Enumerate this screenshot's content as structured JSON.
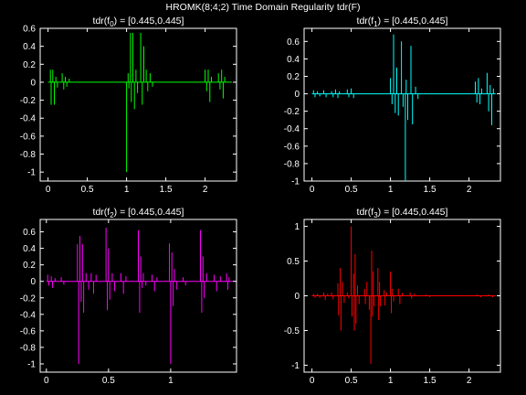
{
  "figure": {
    "title": "HROMK(8;4;2) Time Domain Regularity tdr(F)"
  },
  "chart_data": [
    {
      "type": "line",
      "title": "tdr(f0) = [0.445,0.445]",
      "title_parts": {
        "pre": "tdr(f",
        "sub": "0",
        "post": ") = [0.445,0.445]"
      },
      "color": "#00ff00",
      "xlim": [
        -0.1,
        2.4
      ],
      "ylim": [
        -1.1,
        0.6
      ],
      "xticks": [
        0,
        0.5,
        1,
        1.5,
        2
      ],
      "xtick_labels": [
        "0",
        "0.5",
        "1",
        "1.5",
        "2"
      ],
      "yticks": [
        -1,
        -0.8,
        -0.6,
        -0.4,
        -0.2,
        0,
        0.2,
        0.4,
        0.6
      ],
      "ytick_labels": [
        "-1",
        "-0.8",
        "-0.6",
        "-0.4",
        "-0.2",
        "0",
        "0.2",
        "0.4",
        "0.6"
      ],
      "x_start": 0.0,
      "x_end": 2.34,
      "spikes": [
        [
          0.03,
          0.14
        ],
        [
          0.04,
          -0.25
        ],
        [
          0.06,
          0.14
        ],
        [
          0.08,
          -0.25
        ],
        [
          0.1,
          0.06
        ],
        [
          0.12,
          -0.06
        ],
        [
          0.18,
          0.1
        ],
        [
          0.2,
          -0.08
        ],
        [
          0.22,
          0.06
        ],
        [
          0.24,
          -0.05
        ],
        [
          0.27,
          0.04
        ],
        [
          1.02,
          0.1
        ],
        [
          1.03,
          -0.07
        ],
        [
          1.05,
          0.55
        ],
        [
          1.06,
          -0.22
        ],
        [
          1.08,
          0.55
        ],
        [
          1.1,
          -0.3
        ],
        [
          1.0,
          -1.0
        ],
        [
          1.12,
          0.14
        ],
        [
          1.14,
          -0.12
        ],
        [
          1.18,
          0.55
        ],
        [
          1.2,
          -0.25
        ],
        [
          1.22,
          0.4
        ],
        [
          1.25,
          0.14
        ],
        [
          1.27,
          -0.1
        ],
        [
          1.3,
          0.1
        ],
        [
          1.33,
          -0.05
        ],
        [
          2.0,
          0.14
        ],
        [
          2.02,
          -0.1
        ],
        [
          2.04,
          0.14
        ],
        [
          2.06,
          -0.22
        ],
        [
          2.08,
          0.06
        ],
        [
          2.17,
          0.1
        ],
        [
          2.19,
          -0.08
        ],
        [
          2.21,
          0.14
        ],
        [
          2.23,
          -0.18
        ],
        [
          2.25,
          0.06
        ]
      ]
    },
    {
      "type": "line",
      "title": "tdr(f1) = [0.445,0.445]",
      "title_parts": {
        "pre": "tdr(f",
        "sub": "1",
        "post": ") = [0.445,0.445]"
      },
      "color": "#00ffff",
      "xlim": [
        -0.1,
        2.4
      ],
      "ylim": [
        -1.0,
        0.75
      ],
      "xticks": [
        0,
        0.5,
        1,
        1.5,
        2
      ],
      "xtick_labels": [
        "0",
        "0.5",
        "1",
        "1.5",
        "2"
      ],
      "yticks": [
        -1,
        -0.8,
        -0.6,
        -0.4,
        -0.2,
        0,
        0.2,
        0.4,
        0.6
      ],
      "ytick_labels": [
        "-1",
        "-0.8",
        "-0.6",
        "-0.4",
        "-0.2",
        "0",
        "0.2",
        "0.4",
        "0.6"
      ],
      "x_start": 0.0,
      "x_end": 2.34,
      "spikes": [
        [
          0.02,
          0.04
        ],
        [
          0.04,
          -0.04
        ],
        [
          0.07,
          0.03
        ],
        [
          0.1,
          -0.03
        ],
        [
          0.15,
          0.04
        ],
        [
          0.18,
          -0.04
        ],
        [
          0.25,
          0.03
        ],
        [
          0.27,
          -0.04
        ],
        [
          0.3,
          0.05
        ],
        [
          0.33,
          -0.05
        ],
        [
          0.35,
          0.03
        ],
        [
          0.45,
          0.05
        ],
        [
          0.47,
          -0.04
        ],
        [
          0.5,
          0.06
        ],
        [
          0.53,
          -0.05
        ],
        [
          1.0,
          0.18
        ],
        [
          1.02,
          -0.12
        ],
        [
          1.04,
          0.68
        ],
        [
          1.06,
          -0.22
        ],
        [
          1.08,
          0.3
        ],
        [
          1.1,
          -0.25
        ],
        [
          1.14,
          0.6
        ],
        [
          1.16,
          -0.15
        ],
        [
          1.2,
          0.16
        ],
        [
          1.22,
          -0.3
        ],
        [
          1.26,
          0.55
        ],
        [
          1.28,
          -0.35
        ],
        [
          1.19,
          -1.0
        ],
        [
          1.32,
          0.08
        ],
        [
          1.35,
          -0.06
        ],
        [
          2.08,
          0.14
        ],
        [
          2.1,
          -0.1
        ],
        [
          2.12,
          0.18
        ],
        [
          2.14,
          -0.12
        ],
        [
          2.16,
          0.06
        ],
        [
          2.23,
          0.24
        ],
        [
          2.25,
          -0.2
        ],
        [
          2.27,
          0.1
        ],
        [
          2.29,
          -0.36
        ],
        [
          2.31,
          0.06
        ]
      ]
    },
    {
      "type": "line",
      "title": "tdr(f2) = [0.445,0.445]",
      "title_parts": {
        "pre": "tdr(f",
        "sub": "2",
        "post": ") = [0.445,0.445]"
      },
      "color": "#ff00ff",
      "xlim": [
        -0.05,
        1.53
      ],
      "ylim": [
        -1.1,
        0.75
      ],
      "xticks": [
        0,
        0.5,
        1
      ],
      "xtick_labels": [
        "0",
        "0.5",
        "1"
      ],
      "yticks": [
        -1,
        -0.8,
        -0.6,
        -0.4,
        -0.2,
        0,
        0.2,
        0.4,
        0.6
      ],
      "ytick_labels": [
        "-1",
        "-0.8",
        "-0.6",
        "-0.4",
        "-0.2",
        "0",
        "0.2",
        "0.4",
        "0.6"
      ],
      "x_start": 0.0,
      "x_end": 1.5,
      "spikes": [
        [
          0.01,
          0.08
        ],
        [
          0.02,
          -0.05
        ],
        [
          0.04,
          0.06
        ],
        [
          0.05,
          -0.08
        ],
        [
          0.07,
          0.04
        ],
        [
          0.12,
          0.05
        ],
        [
          0.14,
          -0.04
        ],
        [
          0.25,
          0.45
        ],
        [
          0.26,
          -1.0
        ],
        [
          0.27,
          0.55
        ],
        [
          0.28,
          -0.25
        ],
        [
          0.29,
          0.45
        ],
        [
          0.3,
          -0.38
        ],
        [
          0.32,
          0.1
        ],
        [
          0.34,
          -0.1
        ],
        [
          0.36,
          0.1
        ],
        [
          0.38,
          -0.15
        ],
        [
          0.4,
          0.08
        ],
        [
          0.48,
          0.65
        ],
        [
          0.49,
          -0.35
        ],
        [
          0.5,
          0.4
        ],
        [
          0.51,
          -0.22
        ],
        [
          0.53,
          0.1
        ],
        [
          0.55,
          -0.12
        ],
        [
          0.6,
          0.1
        ],
        [
          0.62,
          -0.15
        ],
        [
          0.64,
          0.06
        ],
        [
          0.74,
          0.62
        ],
        [
          0.75,
          -0.38
        ],
        [
          0.76,
          0.3
        ],
        [
          0.77,
          -0.08
        ],
        [
          0.78,
          0.1
        ],
        [
          0.8,
          -0.05
        ],
        [
          0.85,
          0.08
        ],
        [
          0.87,
          -0.12
        ],
        [
          0.89,
          0.05
        ],
        [
          0.99,
          0.46
        ],
        [
          1.0,
          -1.0
        ],
        [
          1.01,
          0.35
        ],
        [
          1.02,
          -0.3
        ],
        [
          1.03,
          0.15
        ],
        [
          1.05,
          -0.1
        ],
        [
          1.1,
          0.05
        ],
        [
          1.12,
          -0.05
        ],
        [
          1.24,
          0.62
        ],
        [
          1.25,
          -0.38
        ],
        [
          1.26,
          0.3
        ],
        [
          1.27,
          -0.2
        ],
        [
          1.29,
          0.1
        ],
        [
          1.35,
          0.08
        ],
        [
          1.37,
          -0.12
        ],
        [
          1.4,
          0.06
        ],
        [
          1.45,
          0.1
        ],
        [
          1.46,
          -0.1
        ],
        [
          1.47,
          0.05
        ]
      ]
    },
    {
      "type": "line",
      "title": "tdr(f3) = [0.445,0.445]",
      "title_parts": {
        "pre": "tdr(f",
        "sub": "3",
        "post": ") = [0.445,0.445]"
      },
      "color": "#ff0000",
      "xlim": [
        -0.1,
        2.4
      ],
      "ylim": [
        -1.1,
        1.1
      ],
      "xticks": [
        0,
        0.5,
        1,
        1.5,
        2
      ],
      "xtick_labels": [
        "0",
        "0.5",
        "1",
        "1.5",
        "2"
      ],
      "yticks": [
        -1,
        -0.5,
        0,
        0.5,
        1
      ],
      "ytick_labels": [
        "-1",
        "-0.5",
        "0",
        "0.5",
        "1"
      ],
      "x_start": 0.0,
      "x_end": 2.34,
      "spikes": [
        [
          0.02,
          0.03
        ],
        [
          0.04,
          -0.03
        ],
        [
          0.07,
          0.03
        ],
        [
          0.1,
          -0.03
        ],
        [
          0.15,
          0.05
        ],
        [
          0.17,
          -0.06
        ],
        [
          0.2,
          0.03
        ],
        [
          0.25,
          0.05
        ],
        [
          0.27,
          -0.05
        ],
        [
          0.33,
          0.18
        ],
        [
          0.34,
          -0.28
        ],
        [
          0.36,
          0.4
        ],
        [
          0.37,
          -0.5
        ],
        [
          0.39,
          0.2
        ],
        [
          0.41,
          -0.1
        ],
        [
          0.45,
          0.05
        ],
        [
          0.47,
          -0.04
        ],
        [
          0.5,
          1.0
        ],
        [
          0.51,
          -0.3
        ],
        [
          0.53,
          0.32
        ],
        [
          0.54,
          -0.5
        ],
        [
          0.55,
          0.6
        ],
        [
          0.56,
          -0.4
        ],
        [
          0.58,
          0.15
        ],
        [
          0.6,
          -0.12
        ],
        [
          0.67,
          0.1
        ],
        [
          0.68,
          -0.12
        ],
        [
          0.7,
          0.2
        ],
        [
          0.73,
          -0.2
        ],
        [
          0.75,
          -0.98
        ],
        [
          0.76,
          0.65
        ],
        [
          0.77,
          -0.3
        ],
        [
          0.78,
          0.35
        ],
        [
          0.79,
          -0.15
        ],
        [
          0.84,
          0.4
        ],
        [
          0.85,
          -0.35
        ],
        [
          0.86,
          0.2
        ],
        [
          0.87,
          -0.15
        ],
        [
          0.92,
          0.08
        ],
        [
          0.93,
          -0.14
        ],
        [
          0.95,
          0.05
        ],
        [
          1.0,
          0.35
        ],
        [
          1.01,
          -0.25
        ],
        [
          1.02,
          0.1
        ],
        [
          1.04,
          -0.08
        ],
        [
          1.1,
          0.1
        ],
        [
          1.12,
          -0.12
        ],
        [
          1.15,
          0.04
        ],
        [
          1.25,
          0.05
        ],
        [
          1.27,
          -0.04
        ],
        [
          1.3,
          0.03
        ],
        [
          1.45,
          0.02
        ],
        [
          1.5,
          -0.02
        ],
        [
          2.1,
          0.02
        ],
        [
          2.15,
          -0.02
        ],
        [
          2.25,
          0.02
        ],
        [
          2.3,
          -0.02
        ]
      ]
    }
  ]
}
